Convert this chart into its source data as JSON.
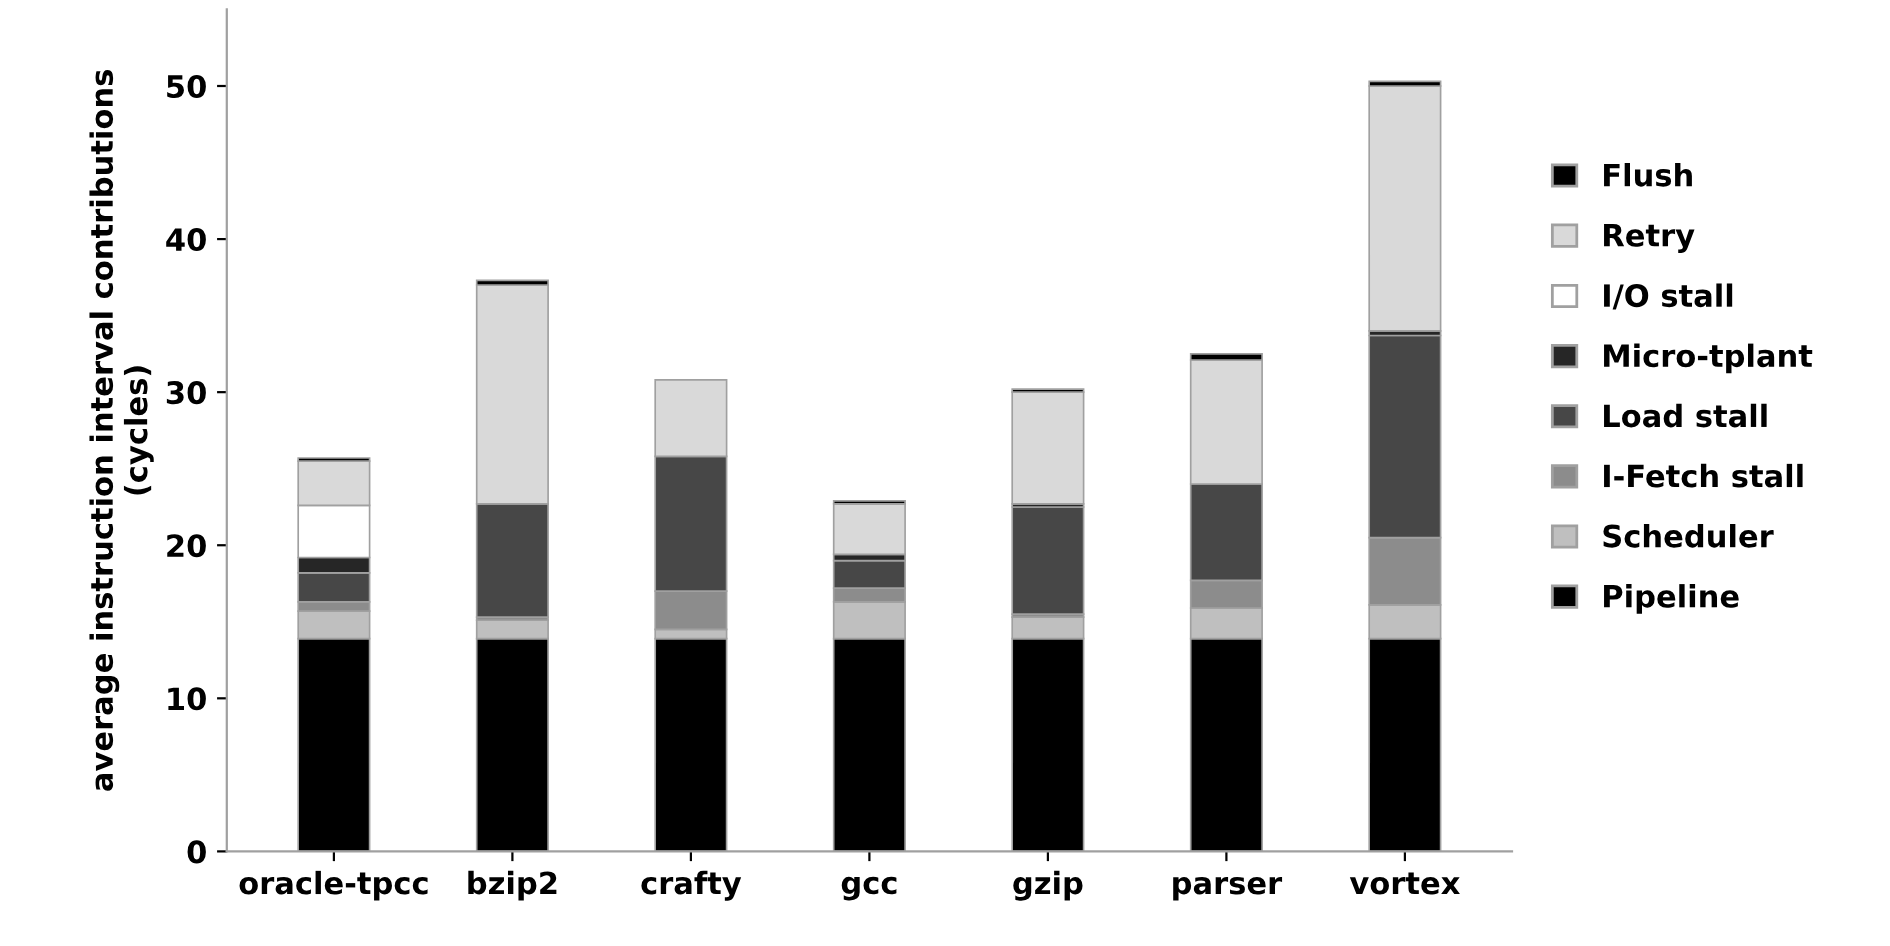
{
  "chart_data": {
    "type": "bar",
    "stacked": true,
    "ylabel": "average instruction interval contributions\n(cycles)",
    "categories": [
      "oracle-tpcc",
      "bzip2",
      "crafty",
      "gcc",
      "gzip",
      "parser",
      "vortex"
    ],
    "series": [
      {
        "name": "Pipeline",
        "color": "#000000",
        "values": [
          13.9,
          13.9,
          13.9,
          13.9,
          13.9,
          13.9,
          13.9
        ]
      },
      {
        "name": "Scheduler",
        "color": "#bfbfbf",
        "values": [
          1.8,
          1.2,
          0.6,
          2.4,
          1.4,
          2.0,
          2.2
        ]
      },
      {
        "name": "I-Fetch stall",
        "color": "#8c8c8c",
        "values": [
          0.6,
          0.2,
          2.5,
          0.9,
          0.2,
          1.8,
          4.4
        ]
      },
      {
        "name": "Load stall",
        "color": "#474747",
        "values": [
          1.9,
          7.4,
          8.8,
          1.8,
          7.0,
          6.3,
          13.2
        ]
      },
      {
        "name": "Micro-tplant",
        "color": "#262626",
        "values": [
          1.0,
          0,
          0,
          0.4,
          0.2,
          0,
          0.3
        ]
      },
      {
        "name": "I/O stall",
        "color": "#ffffff",
        "values": [
          3.4,
          0,
          0,
          0,
          0,
          0,
          0
        ]
      },
      {
        "name": "Retry",
        "color": "#d9d9d9",
        "values": [
          2.9,
          14.3,
          5.0,
          3.3,
          7.3,
          8.1,
          16.0
        ]
      },
      {
        "name": "Flush",
        "color": "#000000",
        "values": [
          0.2,
          0.3,
          0,
          0.2,
          0.2,
          0.4,
          0.3
        ]
      }
    ],
    "ylim": [
      0,
      55
    ],
    "yticks": [
      0,
      10,
      20,
      30,
      40,
      50
    ],
    "grid": false,
    "legend": "right"
  }
}
